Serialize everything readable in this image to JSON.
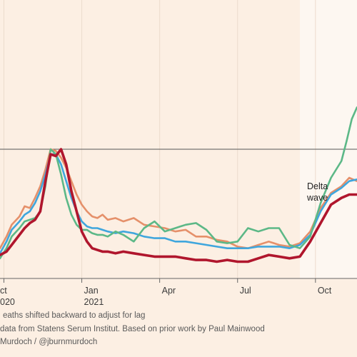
{
  "chart_data": {
    "type": "line",
    "x_ticks": [
      {
        "x": 0,
        "label": "ct",
        "sub": "020"
      },
      {
        "x": 3,
        "label": "Jan",
        "sub": "2021"
      },
      {
        "x": 6,
        "label": "Apr",
        "sub": ""
      },
      {
        "x": 9,
        "label": "Jul",
        "sub": ""
      },
      {
        "x": 12,
        "label": "Oct",
        "sub": ""
      }
    ],
    "xlim": [
      -0.15,
      13.6
    ],
    "ylim": [
      0,
      1.0
    ],
    "reference_line": 0.77,
    "shaded_region": {
      "x0": 11.4,
      "x1": 13.6,
      "label_line1": "Delta",
      "label_line2": "wave"
    },
    "series": [
      {
        "color": "#e5906a",
        "x": [
          -0.15,
          0.1,
          0.3,
          0.6,
          0.8,
          1.0,
          1.2,
          1.4,
          1.6,
          1.8,
          2.0,
          2.2,
          2.4,
          2.6,
          2.8,
          3.0,
          3.2,
          3.4,
          3.6,
          3.8,
          4.0,
          4.3,
          4.6,
          5.0,
          5.4,
          5.8,
          6.2,
          6.6,
          7.0,
          7.4,
          7.8,
          8.2,
          8.6,
          9.0,
          9.4,
          9.8,
          10.2,
          10.6,
          11.0,
          11.4,
          11.8,
          12.2,
          12.6,
          13.0,
          13.3,
          13.6
        ],
        "y": [
          0.18,
          0.25,
          0.32,
          0.37,
          0.43,
          0.42,
          0.48,
          0.55,
          0.65,
          0.77,
          0.76,
          0.72,
          0.66,
          0.58,
          0.5,
          0.44,
          0.4,
          0.37,
          0.36,
          0.38,
          0.35,
          0.36,
          0.34,
          0.36,
          0.32,
          0.31,
          0.3,
          0.28,
          0.29,
          0.25,
          0.25,
          0.23,
          0.22,
          0.19,
          0.18,
          0.2,
          0.22,
          0.2,
          0.19,
          0.21,
          0.28,
          0.42,
          0.51,
          0.55,
          0.6,
          0.58
        ]
      },
      {
        "color": "#3fa6dd",
        "x": [
          -0.15,
          0.1,
          0.3,
          0.6,
          0.8,
          1.0,
          1.2,
          1.4,
          1.6,
          1.8,
          2.0,
          2.2,
          2.4,
          2.6,
          2.8,
          3.0,
          3.2,
          3.4,
          3.6,
          3.8,
          4.0,
          4.3,
          4.6,
          5.0,
          5.4,
          5.8,
          6.2,
          6.6,
          7.0,
          7.4,
          7.8,
          8.2,
          8.6,
          9.0,
          9.4,
          9.8,
          10.2,
          10.6,
          11.0,
          11.4,
          11.8,
          12.2,
          12.6,
          13.0,
          13.3,
          13.6
        ],
        "y": [
          0.15,
          0.22,
          0.29,
          0.34,
          0.38,
          0.4,
          0.45,
          0.52,
          0.62,
          0.74,
          0.74,
          0.68,
          0.58,
          0.48,
          0.4,
          0.34,
          0.31,
          0.3,
          0.3,
          0.29,
          0.28,
          0.27,
          0.28,
          0.27,
          0.25,
          0.24,
          0.24,
          0.22,
          0.22,
          0.21,
          0.2,
          0.19,
          0.18,
          0.18,
          0.18,
          0.19,
          0.19,
          0.19,
          0.18,
          0.2,
          0.26,
          0.4,
          0.5,
          0.54,
          0.58,
          0.59
        ]
      },
      {
        "color": "#5cb887",
        "x": [
          -0.15,
          0.1,
          0.3,
          0.6,
          0.8,
          1.0,
          1.2,
          1.4,
          1.6,
          1.8,
          2.0,
          2.2,
          2.4,
          2.6,
          2.8,
          3.0,
          3.2,
          3.4,
          3.6,
          3.8,
          4.0,
          4.3,
          4.6,
          5.0,
          5.4,
          5.8,
          6.2,
          6.6,
          7.0,
          7.4,
          7.8,
          8.2,
          8.6,
          9.0,
          9.4,
          9.8,
          10.2,
          10.6,
          11.0,
          11.4,
          11.8,
          12.2,
          12.6,
          13.0,
          13.2,
          13.4,
          13.6
        ],
        "y": [
          0.12,
          0.18,
          0.25,
          0.3,
          0.34,
          0.35,
          0.36,
          0.4,
          0.55,
          0.77,
          0.74,
          0.62,
          0.48,
          0.38,
          0.32,
          0.29,
          0.29,
          0.27,
          0.26,
          0.26,
          0.25,
          0.28,
          0.26,
          0.22,
          0.3,
          0.34,
          0.28,
          0.3,
          0.32,
          0.33,
          0.29,
          0.22,
          0.21,
          0.22,
          0.3,
          0.28,
          0.3,
          0.3,
          0.2,
          0.18,
          0.25,
          0.45,
          0.6,
          0.7,
          0.82,
          0.95,
          1.02
        ]
      },
      {
        "color": "#b0162d",
        "x": [
          -0.15,
          0.1,
          0.3,
          0.6,
          0.8,
          1.0,
          1.2,
          1.4,
          1.6,
          1.8,
          2.0,
          2.2,
          2.4,
          2.6,
          2.8,
          3.0,
          3.2,
          3.4,
          3.6,
          3.8,
          4.0,
          4.3,
          4.6,
          5.0,
          5.4,
          5.8,
          6.2,
          6.6,
          7.0,
          7.4,
          7.8,
          8.2,
          8.6,
          9.0,
          9.4,
          9.8,
          10.2,
          10.6,
          11.0,
          11.4,
          11.8,
          12.2,
          12.6,
          13.0,
          13.3,
          13.6
        ],
        "y": [
          0.14,
          0.16,
          0.2,
          0.26,
          0.3,
          0.33,
          0.35,
          0.4,
          0.58,
          0.74,
          0.73,
          0.77,
          0.68,
          0.52,
          0.4,
          0.28,
          0.22,
          0.18,
          0.17,
          0.16,
          0.16,
          0.15,
          0.16,
          0.15,
          0.14,
          0.13,
          0.13,
          0.13,
          0.12,
          0.11,
          0.11,
          0.1,
          0.11,
          0.1,
          0.1,
          0.12,
          0.14,
          0.13,
          0.12,
          0.13,
          0.22,
          0.33,
          0.44,
          0.48,
          0.5,
          0.5
        ]
      }
    ]
  },
  "footnotes": {
    "note": "eaths shifted backward to adjust for lag",
    "source": "data from Statens Serum Institut. Based on prior work by Paul Mainwood",
    "credit": "Murdoch / @jburnmurdoch"
  }
}
